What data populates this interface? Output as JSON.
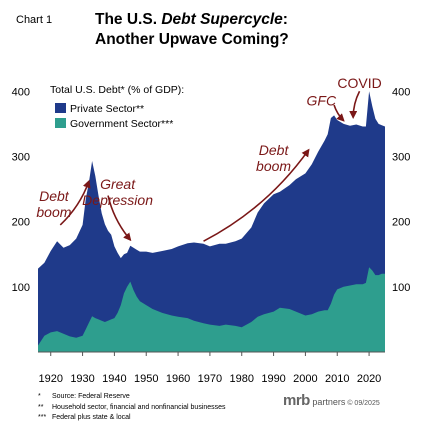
{
  "header": {
    "chart_number": "Chart 1",
    "title_pre": "The U.S. ",
    "title_em": "Debt Supercycle",
    "title_post": ":",
    "title_line2": "Another Upwave Coming?"
  },
  "colors": {
    "private_sector": "#1f3a8a",
    "government_sector": "#2e9e8e",
    "annotation": "#7a1717"
  },
  "chart_data": {
    "type": "area",
    "stacked": true,
    "title": "Total U.S. Debt* (% of GDP):",
    "xlabel": "",
    "ylabel": "",
    "xlim": [
      1916,
      2025
    ],
    "ylim": [
      0,
      425
    ],
    "x_ticks": [
      1920,
      1930,
      1940,
      1950,
      1960,
      1970,
      1980,
      1990,
      2000,
      2010,
      2020
    ],
    "y_ticks_left": [
      100,
      200,
      300,
      400
    ],
    "y_ticks_right": [
      100,
      200,
      300,
      400
    ],
    "legend_placement": "top-left",
    "series": [
      {
        "name": "Private Sector**",
        "color": "#1f3a8a",
        "points": [
          [
            1916,
            118
          ],
          [
            1918,
            112
          ],
          [
            1920,
            125
          ],
          [
            1922,
            138
          ],
          [
            1924,
            132
          ],
          [
            1926,
            140
          ],
          [
            1928,
            152
          ],
          [
            1930,
            170
          ],
          [
            1931,
            200
          ],
          [
            1932,
            215
          ],
          [
            1933,
            238
          ],
          [
            1934,
            218
          ],
          [
            1935,
            190
          ],
          [
            1936,
            165
          ],
          [
            1937,
            150
          ],
          [
            1938,
            138
          ],
          [
            1939,
            130
          ],
          [
            1940,
            110
          ],
          [
            1941,
            92
          ],
          [
            1942,
            72
          ],
          [
            1943,
            60
          ],
          [
            1944,
            52
          ],
          [
            1945,
            55
          ],
          [
            1946,
            65
          ],
          [
            1947,
            72
          ],
          [
            1948,
            76
          ],
          [
            1950,
            82
          ],
          [
            1952,
            86
          ],
          [
            1955,
            95
          ],
          [
            1958,
            102
          ],
          [
            1960,
            108
          ],
          [
            1963,
            115
          ],
          [
            1965,
            120
          ],
          [
            1968,
            122
          ],
          [
            1970,
            120
          ],
          [
            1973,
            126
          ],
          [
            1975,
            124
          ],
          [
            1978,
            130
          ],
          [
            1980,
            136
          ],
          [
            1983,
            145
          ],
          [
            1985,
            160
          ],
          [
            1987,
            170
          ],
          [
            1990,
            180
          ],
          [
            1992,
            178
          ],
          [
            1995,
            190
          ],
          [
            1997,
            203
          ],
          [
            2000,
            218
          ],
          [
            2002,
            230
          ],
          [
            2004,
            245
          ],
          [
            2006,
            260
          ],
          [
            2007,
            270
          ],
          [
            2008,
            285
          ],
          [
            2009,
            275
          ],
          [
            2010,
            260
          ],
          [
            2012,
            250
          ],
          [
            2014,
            245
          ],
          [
            2016,
            245
          ],
          [
            2018,
            242
          ],
          [
            2019,
            240
          ],
          [
            2020,
            270
          ],
          [
            2021,
            252
          ],
          [
            2022,
            240
          ],
          [
            2023,
            232
          ],
          [
            2024,
            228
          ],
          [
            2025,
            226
          ]
        ]
      },
      {
        "name": "Government Sector***",
        "color": "#2e9e8e",
        "points": [
          [
            1916,
            10
          ],
          [
            1918,
            25
          ],
          [
            1920,
            30
          ],
          [
            1922,
            32
          ],
          [
            1924,
            28
          ],
          [
            1926,
            24
          ],
          [
            1928,
            22
          ],
          [
            1930,
            25
          ],
          [
            1931,
            35
          ],
          [
            1932,
            45
          ],
          [
            1933,
            55
          ],
          [
            1934,
            52
          ],
          [
            1935,
            50
          ],
          [
            1936,
            48
          ],
          [
            1937,
            46
          ],
          [
            1938,
            48
          ],
          [
            1939,
            50
          ],
          [
            1940,
            52
          ],
          [
            1941,
            60
          ],
          [
            1942,
            72
          ],
          [
            1943,
            90
          ],
          [
            1944,
            100
          ],
          [
            1945,
            108
          ],
          [
            1946,
            95
          ],
          [
            1947,
            85
          ],
          [
            1948,
            78
          ],
          [
            1950,
            72
          ],
          [
            1952,
            66
          ],
          [
            1955,
            60
          ],
          [
            1958,
            56
          ],
          [
            1960,
            54
          ],
          [
            1963,
            52
          ],
          [
            1965,
            48
          ],
          [
            1968,
            44
          ],
          [
            1970,
            42
          ],
          [
            1973,
            40
          ],
          [
            1975,
            42
          ],
          [
            1978,
            40
          ],
          [
            1980,
            38
          ],
          [
            1983,
            46
          ],
          [
            1985,
            54
          ],
          [
            1987,
            58
          ],
          [
            1990,
            62
          ],
          [
            1992,
            68
          ],
          [
            1995,
            66
          ],
          [
            1997,
            62
          ],
          [
            2000,
            56
          ],
          [
            2002,
            58
          ],
          [
            2004,
            62
          ],
          [
            2006,
            64
          ],
          [
            2007,
            64
          ],
          [
            2008,
            74
          ],
          [
            2009,
            88
          ],
          [
            2010,
            96
          ],
          [
            2012,
            100
          ],
          [
            2014,
            102
          ],
          [
            2016,
            104
          ],
          [
            2018,
            104
          ],
          [
            2019,
            106
          ],
          [
            2020,
            130
          ],
          [
            2021,
            125
          ],
          [
            2022,
            118
          ],
          [
            2023,
            118
          ],
          [
            2024,
            120
          ],
          [
            2025,
            120
          ]
        ]
      }
    ],
    "annotations": [
      {
        "label_lines": [
          "Debt",
          "boom"
        ],
        "x": 1921,
        "y": 232,
        "style": "italic"
      },
      {
        "label_lines": [
          "Great",
          "Depression"
        ],
        "x": 1941,
        "y": 250,
        "style": "italic"
      },
      {
        "label_lines": [
          "Debt",
          "boom"
        ],
        "x": 1990,
        "y": 302,
        "style": "italic"
      },
      {
        "label_lines": [
          "GFC"
        ],
        "x": 2005,
        "y": 378,
        "style": "italic"
      },
      {
        "label_lines": [
          "COVID"
        ],
        "x": 2017,
        "y": 405,
        "style": "normal"
      }
    ],
    "arrows": [
      {
        "from": [
          1923,
          195
        ],
        "to": [
          1932,
          262
        ]
      },
      {
        "from": [
          1938,
          240
        ],
        "to": [
          1945,
          172
        ]
      },
      {
        "from": [
          1968,
          170
        ],
        "to": [
          2001,
          310
        ]
      },
      {
        "from": [
          2009,
          379
        ],
        "to": [
          2012,
          355
        ]
      },
      {
        "from": [
          2017,
          400
        ],
        "to": [
          2015,
          360
        ]
      }
    ]
  },
  "footnotes": [
    {
      "mark": "*",
      "text": "Source: Federal Reserve"
    },
    {
      "mark": "**",
      "text": "Household sector, financial and nonfinancial businesses"
    },
    {
      "mark": "***",
      "text": "Federal plus state & local"
    }
  ],
  "brand": {
    "logo": "mrb",
    "name": " partners",
    "copyright": " © 09/2025"
  }
}
